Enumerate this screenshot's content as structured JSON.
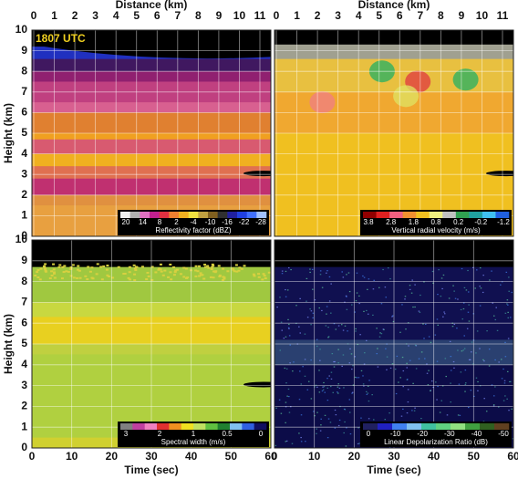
{
  "annotation": "1807 UTC",
  "chart_data": [
    {
      "type": "heatmap",
      "ylabel": "Height (km)",
      "ylim": [
        0,
        10
      ],
      "yticks": [
        0,
        1,
        2,
        3,
        4,
        5,
        6,
        7,
        8,
        9,
        10
      ],
      "x2label": "Distance (km)",
      "x2lim": [
        0,
        11
      ],
      "x2ticks": [
        0,
        1,
        2,
        3,
        4,
        5,
        6,
        7,
        8,
        9,
        10,
        11
      ],
      "grid": true,
      "colorbar": {
        "label": "Reflectivity factor (dBZ)",
        "colors": [
          "#f0f0f0",
          "#b0b0b0",
          "#e070c0",
          "#c02090",
          "#e03040",
          "#f08030",
          "#f0b020",
          "#f0e040",
          "#c0a040",
          "#806020",
          "#303030",
          "#2020a0",
          "#2040e0",
          "#4070ff",
          "#a0c0ff"
        ],
        "ticks": [
          20,
          14,
          8,
          2,
          -4,
          -10,
          -16,
          -22,
          -28
        ]
      }
    },
    {
      "type": "heatmap",
      "ylim": [
        0,
        10
      ],
      "x2label": "Distance (km)",
      "x2lim": [
        0,
        11
      ],
      "x2ticks": [
        0,
        1,
        2,
        3,
        4,
        5,
        6,
        7,
        8,
        9,
        10,
        11
      ],
      "grid": true,
      "colorbar": {
        "label": "Vertical radial velocity (m/s)",
        "colors": [
          "#900000",
          "#e02020",
          "#f06080",
          "#f09030",
          "#f0c020",
          "#f0f080",
          "#c0c0c0",
          "#30a050",
          "#20a0a0",
          "#40c0f0",
          "#2060e0"
        ],
        "ticks": [
          3.8,
          2.8,
          1.8,
          0.8,
          0.2,
          -0.2,
          -1.2
        ]
      }
    },
    {
      "type": "heatmap",
      "ylabel": "Height (km)",
      "ylim": [
        0,
        10
      ],
      "yticks": [
        0,
        1,
        2,
        3,
        4,
        5,
        6,
        7,
        8,
        9,
        10
      ],
      "xlabel": "Time (sec)",
      "xlim": [
        0,
        60
      ],
      "xticks": [
        0,
        10,
        20,
        30,
        40,
        50,
        60
      ],
      "grid": true,
      "colorbar": {
        "label": "Spectral width (m/s)",
        "colors": [
          "#808080",
          "#c040a0",
          "#f080c0",
          "#e03030",
          "#f09020",
          "#f0e020",
          "#c0e060",
          "#60c040",
          "#208030",
          "#80c0f0",
          "#3060e0",
          "#101060"
        ],
        "ticks": [
          3,
          2,
          1,
          0.5,
          0
        ]
      }
    },
    {
      "type": "heatmap",
      "ylim": [
        0,
        10
      ],
      "xlabel": "Time (sec)",
      "xlim": [
        0,
        60
      ],
      "xticks": [
        0,
        10,
        20,
        30,
        40,
        50,
        60
      ],
      "grid": true,
      "colorbar": {
        "label": "Linear Depolarization Ratio (dB)",
        "colors": [
          "#202060",
          "#2020c0",
          "#4080f0",
          "#80c0f0",
          "#40c0a0",
          "#60d080",
          "#90e080",
          "#40a040",
          "#306020",
          "#604020"
        ],
        "ticks": [
          0,
          -10,
          -20,
          -30,
          -40,
          -50
        ]
      }
    }
  ]
}
